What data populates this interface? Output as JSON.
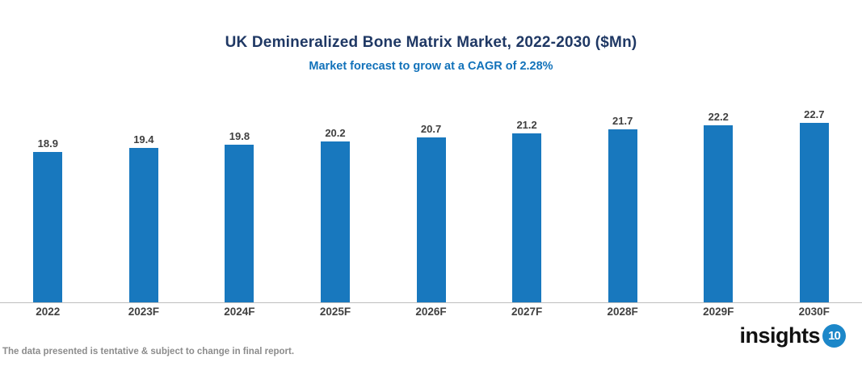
{
  "page": {
    "background": "#FFFFFF"
  },
  "chart_data": {
    "type": "bar",
    "title": "UK Demineralized Bone Matrix Market, 2022-2030 ($Mn)",
    "subtitle": "Market forecast to grow at a CAGR of 2.28%",
    "categories": [
      "2022",
      "2023F",
      "2024F",
      "2025F",
      "2026F",
      "2027F",
      "2028F",
      "2029F",
      "2030F"
    ],
    "values": [
      18.9,
      19.4,
      19.8,
      20.2,
      20.7,
      21.2,
      21.7,
      22.2,
      22.7
    ],
    "xlabel": "",
    "ylabel": "",
    "ylim": [
      0,
      25
    ],
    "grid": false,
    "legend": false,
    "value_labels": true,
    "bar_color": "#1878BE"
  },
  "colors": {
    "title": "#1F3864",
    "subtitle": "#1272BA",
    "bar": "#1878BE",
    "axis_line": "#BFBFBF",
    "value_label": "#3F3F3F",
    "tick_label": "#404040",
    "disclaimer": "#8C8C8C",
    "logo_text": "#111111",
    "logo_badge": "#1C87C9"
  },
  "footer": {
    "disclaimer": "The data presented is tentative & subject to change in final report.",
    "logo_text": "insights",
    "logo_number": "10"
  }
}
